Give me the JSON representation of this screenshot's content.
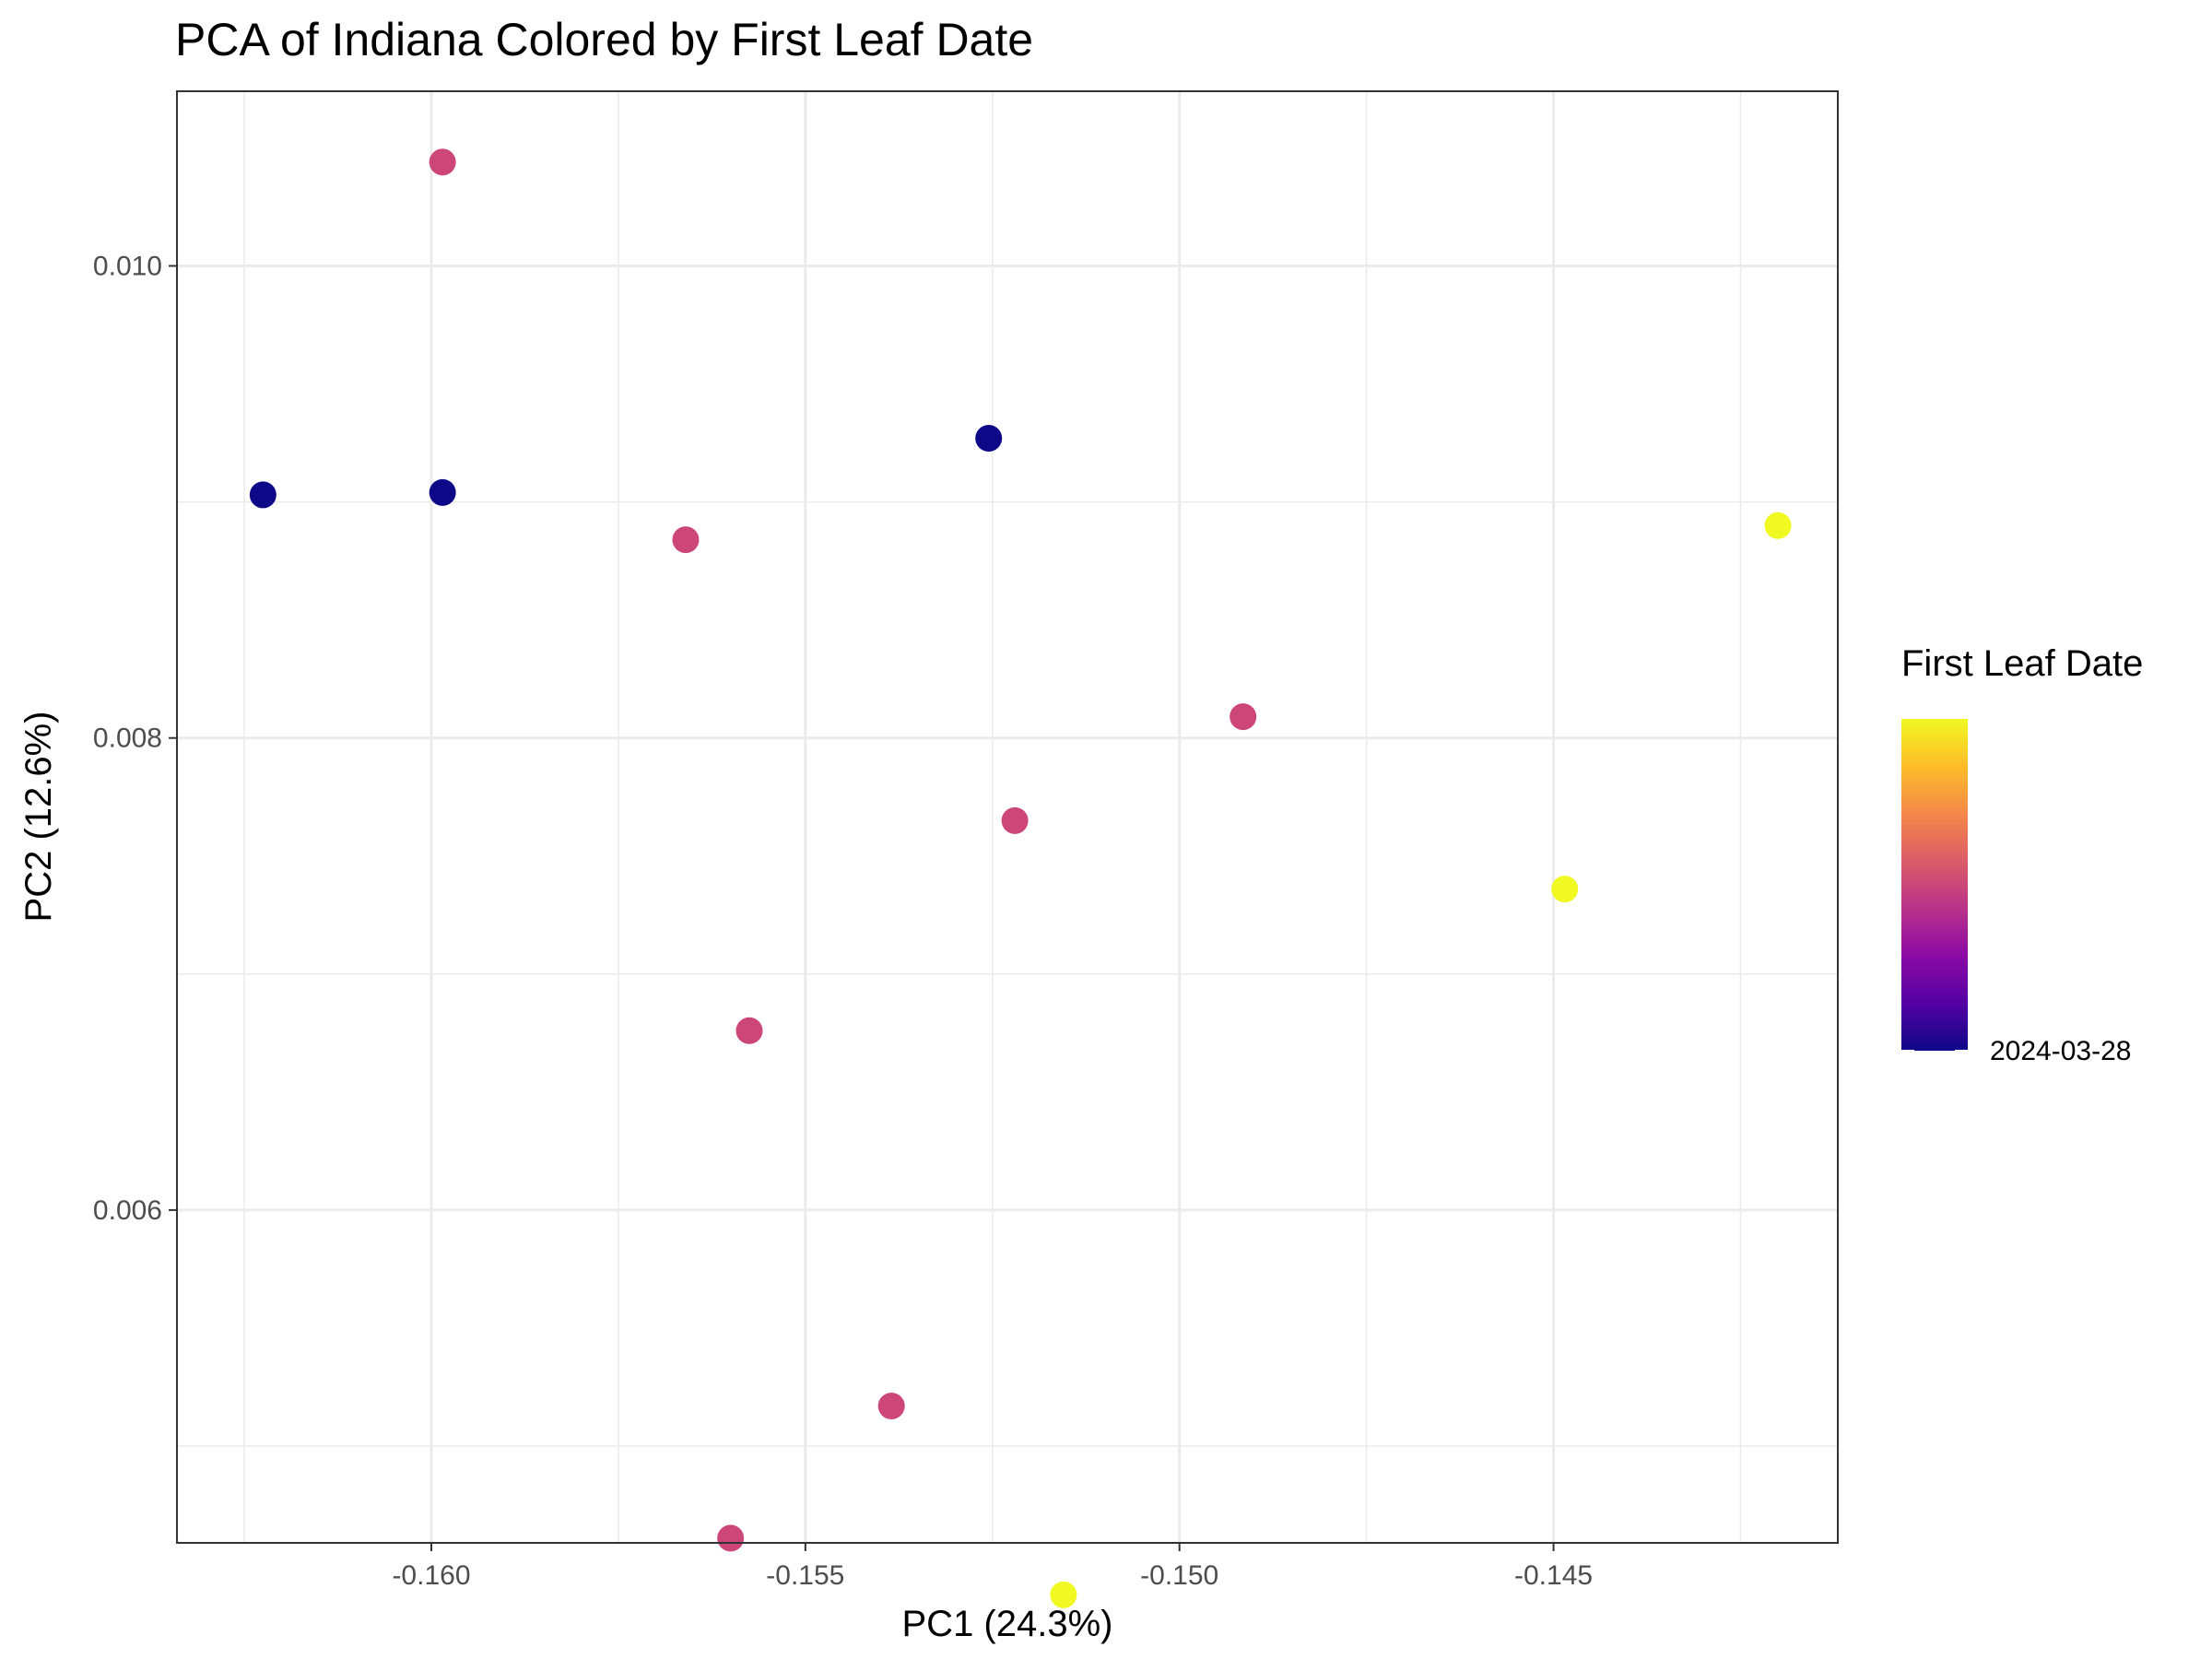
{
  "chart_data": {
    "type": "scatter",
    "title": "PCA of Indiana Colored by First Leaf Date",
    "xlabel": "PC1 (24.3%)",
    "ylabel": "PC2 (12.6%)",
    "xlim": [
      -0.1634,
      -0.1412
    ],
    "ylim": [
      0.00459,
      0.01074
    ],
    "x_ticks": [
      -0.16,
      -0.155,
      -0.15,
      -0.145
    ],
    "x_tick_labels": [
      "-0.160",
      "-0.155",
      "-0.150",
      "-0.145"
    ],
    "y_ticks": [
      0.006,
      0.008,
      0.01
    ],
    "y_tick_labels": [
      "0.006",
      "0.008",
      "0.010"
    ],
    "x_minor_ticks": [
      -0.1625,
      -0.1575,
      -0.1525,
      -0.1475,
      -0.1425
    ],
    "y_minor_ticks": [
      0.005,
      0.007,
      0.009
    ],
    "grid": true,
    "legend": {
      "title": "First Leaf Date",
      "position": "right",
      "type": "colorbar",
      "colormap": "plasma",
      "colors": [
        "#0d0887",
        "#5302a3",
        "#8b0aa5",
        "#b83289",
        "#db5c68",
        "#f48849",
        "#febc2a",
        "#f0f921"
      ],
      "tick_labels": [
        "2024-03-28"
      ]
    },
    "points": [
      {
        "x": -0.16225,
        "y": 0.00903,
        "color": "#0d0887"
      },
      {
        "x": -0.15985,
        "y": 0.00904,
        "color": "#0d0887"
      },
      {
        "x": -0.15255,
        "y": 0.00927,
        "color": "#0d0887"
      },
      {
        "x": -0.15985,
        "y": 0.01044,
        "color": "#cc4778"
      },
      {
        "x": -0.1566,
        "y": 0.00884,
        "color": "#cc4778"
      },
      {
        "x": -0.14915,
        "y": 0.00809,
        "color": "#cc4778"
      },
      {
        "x": -0.1522,
        "y": 0.00765,
        "color": "#cc4778"
      },
      {
        "x": -0.15575,
        "y": 0.00676,
        "color": "#cc4778"
      },
      {
        "x": -0.15385,
        "y": 0.00517,
        "color": "#cc4778"
      },
      {
        "x": -0.156,
        "y": 0.00461,
        "color": "#cc4778"
      },
      {
        "x": -0.15155,
        "y": 0.00437,
        "color": "#f0f921"
      },
      {
        "x": -0.14485,
        "y": 0.00736,
        "color": "#f0f921"
      },
      {
        "x": -0.142,
        "y": 0.0089,
        "color": "#f0f921"
      }
    ]
  }
}
